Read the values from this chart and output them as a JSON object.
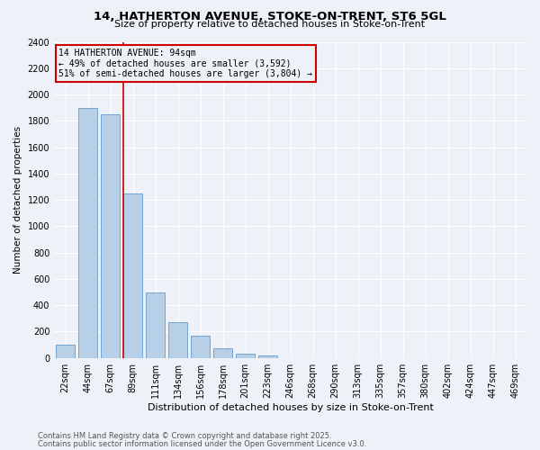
{
  "title1": "14, HATHERTON AVENUE, STOKE-ON-TRENT, ST6 5GL",
  "title2": "Size of property relative to detached houses in Stoke-on-Trent",
  "xlabel": "Distribution of detached houses by size in Stoke-on-Trent",
  "ylabel": "Number of detached properties",
  "categories": [
    "22sqm",
    "44sqm",
    "67sqm",
    "89sqm",
    "111sqm",
    "134sqm",
    "156sqm",
    "178sqm",
    "201sqm",
    "223sqm",
    "246sqm",
    "268sqm",
    "290sqm",
    "313sqm",
    "335sqm",
    "357sqm",
    "380sqm",
    "402sqm",
    "424sqm",
    "447sqm",
    "469sqm"
  ],
  "values": [
    100,
    1900,
    1850,
    1250,
    500,
    270,
    170,
    70,
    30,
    20,
    0,
    0,
    0,
    0,
    0,
    0,
    0,
    0,
    0,
    0,
    0
  ],
  "bar_color": "#b8cfe8",
  "bar_edge_color": "#6699cc",
  "line_color": "#cc0000",
  "line_x_index": 3,
  "annotation_line1": "14 HATHERTON AVENUE: 94sqm",
  "annotation_line2": "← 49% of detached houses are smaller (3,592)",
  "annotation_line3": "51% of semi-detached houses are larger (3,804) →",
  "annotation_box_color": "#cc0000",
  "footer1": "Contains HM Land Registry data © Crown copyright and database right 2025.",
  "footer2": "Contains public sector information licensed under the Open Government Licence v3.0.",
  "bg_color": "#eef2f8",
  "plot_bg_color": "#eef2f8",
  "ylim": [
    0,
    2400
  ],
  "yticks": [
    0,
    200,
    400,
    600,
    800,
    1000,
    1200,
    1400,
    1600,
    1800,
    2000,
    2200,
    2400
  ],
  "grid_color": "#ffffff",
  "title1_fontsize": 9.5,
  "title2_fontsize": 8.0,
  "xlabel_fontsize": 8.0,
  "ylabel_fontsize": 7.5,
  "tick_fontsize": 7.0,
  "footer_fontsize": 6.0
}
